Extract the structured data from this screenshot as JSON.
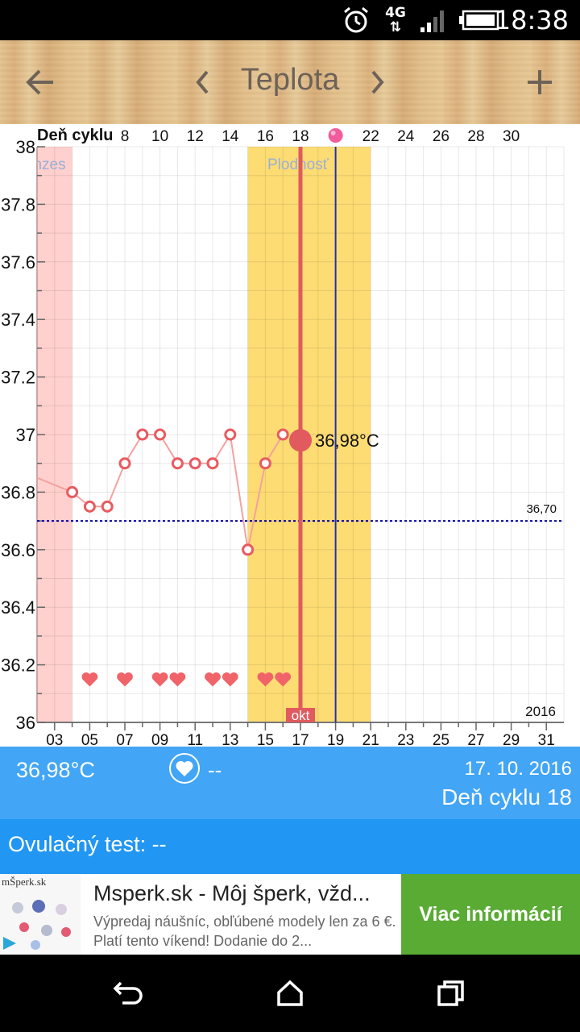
{
  "status_bar": {
    "time": "18:38",
    "network": "4G"
  },
  "toolbar": {
    "title": "Teplota"
  },
  "chart_data": {
    "type": "line",
    "title": "",
    "top_axis_label": "Deň cyklu",
    "cycle_day_ticks": [
      "8",
      "10",
      "12",
      "14",
      "16",
      "18",
      "22",
      "24",
      "26",
      "28",
      "30"
    ],
    "x_ticks": [
      "03",
      "05",
      "07",
      "09",
      "11",
      "13",
      "15",
      "17",
      "19",
      "21",
      "23",
      "25",
      "27",
      "29",
      "31"
    ],
    "month_label": "okt",
    "year_label": "2016",
    "y_ticks": [
      "38",
      "37.8",
      "37.6",
      "37.4",
      "37.2",
      "37",
      "36.8",
      "36.6",
      "36.4",
      "36.2",
      "36"
    ],
    "ylim": [
      36,
      38
    ],
    "xlim": [
      2.0,
      32.0
    ],
    "series": [
      {
        "x": [
          2.0,
          4,
          5,
          6,
          7,
          8,
          9,
          10,
          11,
          12,
          13,
          14,
          15,
          16
        ],
        "y": [
          36.85,
          36.8,
          36.75,
          36.75,
          36.9,
          37.0,
          37.0,
          36.9,
          36.9,
          36.9,
          37.0,
          36.6,
          36.9,
          37.0
        ]
      }
    ],
    "selected_point": {
      "x": 17,
      "y": 36.98,
      "label": "36,98°C"
    },
    "coverline": {
      "value": 36.7,
      "label": "36,70"
    },
    "zones": [
      {
        "label": "Menzes",
        "from_x": 2.0,
        "to_x": 4,
        "color": "#ffd0cd"
      },
      {
        "label": "Plodnosť",
        "from_x": 14,
        "to_x": 21,
        "color": "#fcdc73"
      }
    ],
    "intercourse_days": [
      5,
      7,
      9,
      10,
      12,
      13,
      15,
      16
    ],
    "today_line_x": 17,
    "ovulation_line_x": 19,
    "ovulation_marker_x": 19,
    "grid": true,
    "colors": {
      "line": "#f4a2a0",
      "point": "#e85b60",
      "selected": "#e05a5e",
      "coverline": "#0000aa",
      "ovulation_line": "#2233aa",
      "heart": "#f06469"
    }
  },
  "info_panel": {
    "temperature": "36,98°C",
    "intercourse": "--",
    "date": "17. 10. 2016",
    "cycle_day": "Deň cyklu 18"
  },
  "ovulation_test": {
    "label": "Ovulačný test: --"
  },
  "ad": {
    "logo_text": "mŠperk.sk",
    "title": "Msperk.sk - Môj šperk, vžd...",
    "description": "Výpredaj náušníc, obľúbené modely len za 6 €.  Platí tento víkend! Dodanie do 2...",
    "cta": "Viac informácií"
  }
}
